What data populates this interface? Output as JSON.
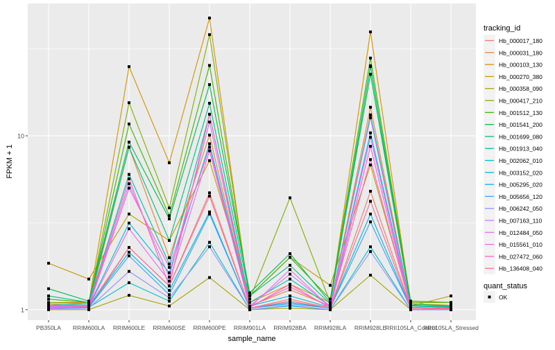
{
  "chart_data": {
    "type": "line",
    "title": "",
    "xlabel": "sample_name",
    "ylabel": "FPKM + 1",
    "yscale": "log10",
    "ylim": [
      0.87,
      57.7
    ],
    "yticks": [
      {
        "value": 1,
        "label": "1"
      },
      {
        "value": 10,
        "label": "10"
      }
    ],
    "grid": true,
    "legend_placement": "right",
    "categories": [
      "PB350LA",
      "RRIM600LA",
      "RRIM600LE",
      "RRIM600SE",
      "RRIM600PE",
      "RRIM901LA",
      "RRIM928BA",
      "RRIM928LA",
      "RRIM928LE",
      "RRII105LA_Control",
      "RRII105LA_Stressed"
    ],
    "legend_title": "tracking_id",
    "series": [
      {
        "name": "Hb_000017_180",
        "color": "#F8766D",
        "values": [
          1.05,
          1.02,
          2.28,
          1.37,
          4.7,
          1.02,
          1.15,
          1.02,
          4.8,
          1.03,
          1.02
        ]
      },
      {
        "name": "Hb_000031_180",
        "color": "#EA8331",
        "values": [
          1.08,
          1.05,
          8.6,
          1.99,
          10.1,
          1.05,
          1.3,
          1.05,
          14.6,
          1.05,
          1.04
        ]
      },
      {
        "name": "Hb_000103_130",
        "color": "#D89000",
        "values": [
          1.1,
          1.1,
          25,
          7.0,
          47.6,
          1.1,
          1.4,
          1.1,
          39.6,
          1.08,
          1.06
        ]
      },
      {
        "name": "Hb_000270_380",
        "color": "#C09B00",
        "values": [
          1.85,
          1.5,
          3.55,
          2.5,
          7.2,
          1.2,
          2.0,
          1.38,
          6.8,
          1.05,
          1.2
        ]
      },
      {
        "name": "Hb_000358_090",
        "color": "#A3A500",
        "values": [
          1.0,
          1.0,
          1.21,
          1.05,
          1.53,
          1.0,
          1.02,
          1.0,
          1.58,
          1.0,
          1.0
        ]
      },
      {
        "name": "Hb_000417_210",
        "color": "#7CAE00",
        "values": [
          1.1,
          1.08,
          15.5,
          3.85,
          38.2,
          1.15,
          4.4,
          1.1,
          25.3,
          1.1,
          1.1
        ]
      },
      {
        "name": "Hb_001512_130",
        "color": "#39B600",
        "values": [
          1.15,
          1.1,
          11.7,
          3.47,
          25.4,
          1.2,
          2.0,
          1.15,
          28,
          1.12,
          1.1
        ]
      },
      {
        "name": "Hb_001541_200",
        "color": "#00BB4E",
        "values": [
          1.32,
          1.12,
          9.2,
          3.33,
          19.7,
          1.25,
          2.1,
          1.1,
          22.6,
          1.08,
          1.05
        ]
      },
      {
        "name": "Hb_001699_080",
        "color": "#00BF7D",
        "values": [
          1.2,
          1.1,
          8.6,
          2.5,
          15.4,
          1.2,
          1.8,
          1.08,
          25,
          1.06,
          1.04
        ]
      },
      {
        "name": "Hb_001913_040",
        "color": "#00C1A3",
        "values": [
          1.06,
          1.08,
          6.0,
          1.83,
          13.3,
          1.1,
          1.5,
          1.05,
          13.2,
          1.05,
          1.03
        ]
      },
      {
        "name": "Hb_002062_010",
        "color": "#00BFC4",
        "values": [
          1.02,
          1.03,
          1.43,
          1.12,
          2.44,
          1.0,
          1.05,
          1.0,
          2.3,
          1.0,
          1.0
        ]
      },
      {
        "name": "Hb_003152_020",
        "color": "#00BAE0",
        "values": [
          1.04,
          1.05,
          3.15,
          1.63,
          9.0,
          1.05,
          1.2,
          1.03,
          10.4,
          1.03,
          1.02
        ]
      },
      {
        "name": "Hb_005295_020",
        "color": "#00B0F6",
        "values": [
          1.03,
          1.04,
          2.14,
          1.29,
          3.65,
          1.02,
          1.1,
          1.02,
          3.55,
          1.02,
          1.01
        ]
      },
      {
        "name": "Hb_005656_120",
        "color": "#35A2FF",
        "values": [
          1.02,
          1.03,
          2.04,
          1.22,
          3.55,
          1.02,
          1.08,
          1.02,
          3.2,
          1.02,
          1.01
        ]
      },
      {
        "name": "Hb_006242_050",
        "color": "#9590FF",
        "values": [
          1.01,
          1.02,
          1.66,
          1.17,
          2.3,
          1.0,
          1.06,
          1.0,
          2.16,
          1.0,
          1.0
        ]
      },
      {
        "name": "Hb_007163_110",
        "color": "#C77CFF",
        "values": [
          1.04,
          1.05,
          5.3,
          1.54,
          12.0,
          1.05,
          1.6,
          1.05,
          12.7,
          1.03,
          1.02
        ]
      },
      {
        "name": "Hb_012484_050",
        "color": "#E76BF3",
        "values": [
          1.03,
          1.04,
          2.92,
          1.46,
          8.2,
          1.03,
          1.7,
          1.03,
          9.8,
          1.02,
          1.01
        ]
      },
      {
        "name": "Hb_015561_010",
        "color": "#FA62DB",
        "values": [
          1.02,
          1.04,
          5.0,
          1.75,
          8.6,
          1.03,
          1.4,
          1.02,
          8.7,
          1.02,
          1.01
        ]
      },
      {
        "name": "Hb_027472_060",
        "color": "#FF62BC",
        "values": [
          1.05,
          1.06,
          5.66,
          1.37,
          13.3,
          1.04,
          1.35,
          1.04,
          7.3,
          1.03,
          1.02
        ]
      },
      {
        "name": "Hb_136408_040",
        "color": "#FF6C91",
        "values": [
          1.06,
          1.05,
          2.28,
          1.37,
          4.5,
          1.02,
          1.12,
          1.02,
          4.2,
          1.02,
          1.01
        ]
      }
    ],
    "shape_legend": {
      "title": "quant_status",
      "items": [
        "OK"
      ]
    }
  }
}
